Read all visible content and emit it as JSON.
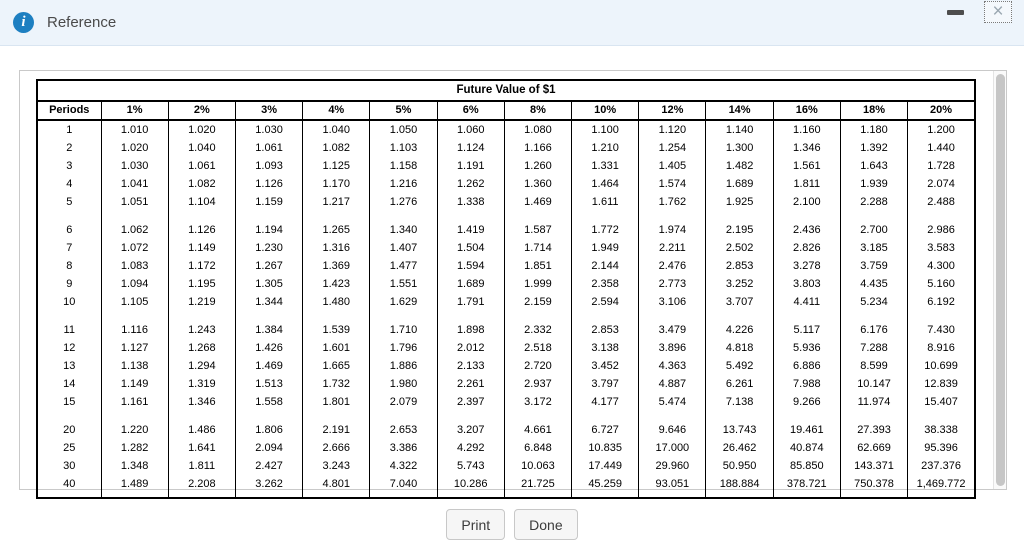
{
  "window": {
    "title": "Reference"
  },
  "icons": {
    "header": "info-icon",
    "minimize": "minimize-icon",
    "close": "close-icon",
    "close_glyph": "×"
  },
  "colors": {
    "titlebar_bg": "#edf4fb",
    "titlebar_border": "#d9e5f1",
    "info_icon_blue": "#1d7fc1",
    "table_border": "#000000",
    "panel_border": "#c9c9c9",
    "scroll_thumb": "#c6c6c6",
    "button_bg": "#f6f6f6"
  },
  "buttons": {
    "print": "Print",
    "done": "Done"
  },
  "table": {
    "title": "Future Value of $1",
    "columns": [
      "Periods",
      "1%",
      "2%",
      "3%",
      "4%",
      "5%",
      "6%",
      "8%",
      "10%",
      "12%",
      "14%",
      "16%",
      "18%",
      "20%"
    ],
    "row_groups": [
      [
        [
          "1",
          "1.010",
          "1.020",
          "1.030",
          "1.040",
          "1.050",
          "1.060",
          "1.080",
          "1.100",
          "1.120",
          "1.140",
          "1.160",
          "1.180",
          "1.200"
        ],
        [
          "2",
          "1.020",
          "1.040",
          "1.061",
          "1.082",
          "1.103",
          "1.124",
          "1.166",
          "1.210",
          "1.254",
          "1.300",
          "1.346",
          "1.392",
          "1.440"
        ],
        [
          "3",
          "1.030",
          "1.061",
          "1.093",
          "1.125",
          "1.158",
          "1.191",
          "1.260",
          "1.331",
          "1.405",
          "1.482",
          "1.561",
          "1.643",
          "1.728"
        ],
        [
          "4",
          "1.041",
          "1.082",
          "1.126",
          "1.170",
          "1.216",
          "1.262",
          "1.360",
          "1.464",
          "1.574",
          "1.689",
          "1.811",
          "1.939",
          "2.074"
        ],
        [
          "5",
          "1.051",
          "1.104",
          "1.159",
          "1.217",
          "1.276",
          "1.338",
          "1.469",
          "1.611",
          "1.762",
          "1.925",
          "2.100",
          "2.288",
          "2.488"
        ]
      ],
      [
        [
          "6",
          "1.062",
          "1.126",
          "1.194",
          "1.265",
          "1.340",
          "1.419",
          "1.587",
          "1.772",
          "1.974",
          "2.195",
          "2.436",
          "2.700",
          "2.986"
        ],
        [
          "7",
          "1.072",
          "1.149",
          "1.230",
          "1.316",
          "1.407",
          "1.504",
          "1.714",
          "1.949",
          "2.211",
          "2.502",
          "2.826",
          "3.185",
          "3.583"
        ],
        [
          "8",
          "1.083",
          "1.172",
          "1.267",
          "1.369",
          "1.477",
          "1.594",
          "1.851",
          "2.144",
          "2.476",
          "2.853",
          "3.278",
          "3.759",
          "4.300"
        ],
        [
          "9",
          "1.094",
          "1.195",
          "1.305",
          "1.423",
          "1.551",
          "1.689",
          "1.999",
          "2.358",
          "2.773",
          "3.252",
          "3.803",
          "4.435",
          "5.160"
        ],
        [
          "10",
          "1.105",
          "1.219",
          "1.344",
          "1.480",
          "1.629",
          "1.791",
          "2.159",
          "2.594",
          "3.106",
          "3.707",
          "4.411",
          "5.234",
          "6.192"
        ]
      ],
      [
        [
          "11",
          "1.116",
          "1.243",
          "1.384",
          "1.539",
          "1.710",
          "1.898",
          "2.332",
          "2.853",
          "3.479",
          "4.226",
          "5.117",
          "6.176",
          "7.430"
        ],
        [
          "12",
          "1.127",
          "1.268",
          "1.426",
          "1.601",
          "1.796",
          "2.012",
          "2.518",
          "3.138",
          "3.896",
          "4.818",
          "5.936",
          "7.288",
          "8.916"
        ],
        [
          "13",
          "1.138",
          "1.294",
          "1.469",
          "1.665",
          "1.886",
          "2.133",
          "2.720",
          "3.452",
          "4.363",
          "5.492",
          "6.886",
          "8.599",
          "10.699"
        ],
        [
          "14",
          "1.149",
          "1.319",
          "1.513",
          "1.732",
          "1.980",
          "2.261",
          "2.937",
          "3.797",
          "4.887",
          "6.261",
          "7.988",
          "10.147",
          "12.839"
        ],
        [
          "15",
          "1.161",
          "1.346",
          "1.558",
          "1.801",
          "2.079",
          "2.397",
          "3.172",
          "4.177",
          "5.474",
          "7.138",
          "9.266",
          "11.974",
          "15.407"
        ]
      ],
      [
        [
          "20",
          "1.220",
          "1.486",
          "1.806",
          "2.191",
          "2.653",
          "3.207",
          "4.661",
          "6.727",
          "9.646",
          "13.743",
          "19.461",
          "27.393",
          "38.338"
        ],
        [
          "25",
          "1.282",
          "1.641",
          "2.094",
          "2.666",
          "3.386",
          "4.292",
          "6.848",
          "10.835",
          "17.000",
          "26.462",
          "40.874",
          "62.669",
          "95.396"
        ],
        [
          "30",
          "1.348",
          "1.811",
          "2.427",
          "3.243",
          "4.322",
          "5.743",
          "10.063",
          "17.449",
          "29.960",
          "50.950",
          "85.850",
          "143.371",
          "237.376"
        ],
        [
          "40",
          "1.489",
          "2.208",
          "3.262",
          "4.801",
          "7.040",
          "10.286",
          "21.725",
          "45.259",
          "93.051",
          "188.884",
          "378.721",
          "750.378",
          "1,469.772"
        ]
      ]
    ]
  }
}
